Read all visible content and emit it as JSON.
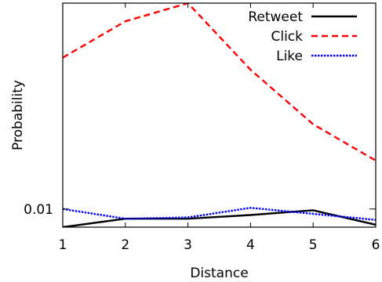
{
  "chart_data": {
    "type": "line",
    "xlabel": "Distance",
    "ylabel": "Probability",
    "x": [
      1,
      2,
      3,
      4,
      5,
      6
    ],
    "xlim": [
      1,
      6
    ],
    "x_ticks": [
      "1",
      "2",
      "3",
      "4",
      "5",
      "6"
    ],
    "ylim": [
      0.0085,
      0.027
    ],
    "y_ticks": [
      0.01
    ],
    "y_tick_labels": [
      "0.01"
    ],
    "grid": false,
    "legend_position": "top-right",
    "series": [
      {
        "name": "Retweet",
        "values": [
          0.0085,
          0.0092,
          0.0092,
          0.0095,
          0.0099,
          0.0087
        ],
        "color": "#000000",
        "dash": "solid"
      },
      {
        "name": "Click",
        "values": [
          0.0225,
          0.0255,
          0.027,
          0.0215,
          0.017,
          0.014
        ],
        "color": "#ff0000",
        "dash": "dashed"
      },
      {
        "name": "Like",
        "values": [
          0.01,
          0.0092,
          0.0093,
          0.0101,
          0.0096,
          0.0091
        ],
        "color": "#0000ff",
        "dash": "dotted"
      }
    ]
  }
}
